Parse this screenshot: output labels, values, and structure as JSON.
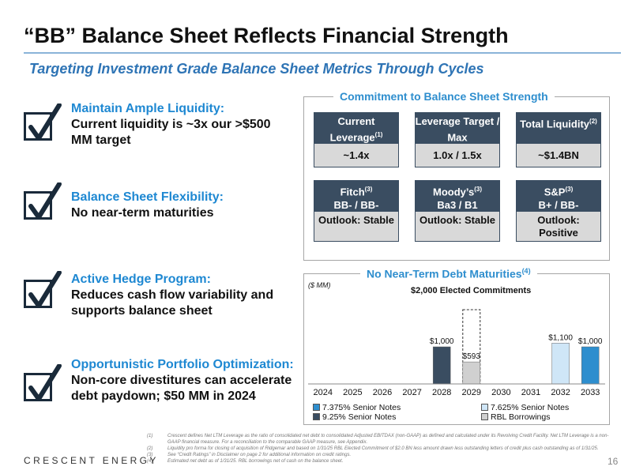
{
  "title": "“BB” Balance Sheet Reflects Financial Strength",
  "subtitle": "Targeting Investment Grade Balance Sheet Metrics Through Cycles",
  "bullets": [
    {
      "heading": "Maintain Ample Liquidity:",
      "body": "Current liquidity is ~3x our >$500 MM target",
      "icon": "checkbox-checked-icon"
    },
    {
      "heading": "Balance Sheet Flexibility:",
      "body": "No near-term maturities",
      "icon": "checkbox-checked-icon"
    },
    {
      "heading": "Active Hedge Program:",
      "body": "Reduces cash flow variability and supports balance sheet",
      "icon": "checkbox-checked-icon"
    },
    {
      "heading": "Opportunistic Portfolio Optimization:",
      "body": "Non-core divestitures can accelerate debt paydown; $50 MM in 2024",
      "icon": "checkbox-checked-icon"
    }
  ],
  "commitment": {
    "title": "Commitment to Balance Sheet Strength",
    "metrics": [
      {
        "label": "Current Leverage",
        "sup": "(1)",
        "value": "~1.4x"
      },
      {
        "label": "Leverage Target / Max",
        "sup": "",
        "value": "1.0x / 1.5x"
      },
      {
        "label": "Total Liquidity",
        "sup": "(2)",
        "value": "~$1.4BN"
      }
    ],
    "ratings": [
      {
        "agency": "Fitch",
        "sup": "(3)",
        "rating": "BB- / BB-",
        "outlook": "Outlook: Stable"
      },
      {
        "agency": "Moody’s",
        "sup": "(3)",
        "rating": "Ba3 / B1",
        "outlook": "Outlook: Stable"
      },
      {
        "agency": "S&P",
        "sup": "(3)",
        "rating": "B+ / BB-",
        "outlook": "Outlook: Positive"
      }
    ]
  },
  "maturities": {
    "title": "No Near-Term Debt Maturities",
    "title_sup": "(4)",
    "units": "($ MM)",
    "elected_label": "$2,000 Elected Commitments"
  },
  "chart_data": {
    "type": "bar",
    "title": "No Near-Term Debt Maturities",
    "ylabel": "($ MM)",
    "categories": [
      "2024",
      "2025",
      "2026",
      "2027",
      "2028",
      "2029",
      "2030",
      "2031",
      "2032",
      "2033"
    ],
    "ylim": [
      0,
      2000
    ],
    "series": [
      {
        "name": "7.375% Senior Notes",
        "color": "#2e8ece",
        "values": [
          0,
          0,
          0,
          0,
          0,
          0,
          0,
          0,
          0,
          1000
        ],
        "data_labels": [
          "",
          "",
          "",
          "",
          "",
          "",
          "",
          "",
          "",
          "$1,000"
        ]
      },
      {
        "name": "7.625% Senior Notes",
        "color": "#cfe6f7",
        "values": [
          0,
          0,
          0,
          0,
          0,
          0,
          0,
          0,
          1100,
          0
        ],
        "data_labels": [
          "",
          "",
          "",
          "",
          "",
          "",
          "",
          "",
          "$1,100",
          ""
        ]
      },
      {
        "name": "9.25% Senior Notes",
        "color": "#3a4d61",
        "values": [
          0,
          0,
          0,
          0,
          1000,
          0,
          0,
          0,
          0,
          0
        ],
        "data_labels": [
          "",
          "",
          "",
          "",
          "$1,000",
          "",
          "",
          "",
          "",
          ""
        ]
      },
      {
        "name": "RBL Borrowings",
        "color": "#d0d0d0",
        "values": [
          0,
          0,
          0,
          0,
          0,
          593,
          0,
          0,
          0,
          0
        ],
        "data_labels": [
          "",
          "",
          "",
          "",
          "",
          "$593",
          "",
          "",
          "",
          ""
        ]
      }
    ],
    "annotations": [
      {
        "category": "2029",
        "value": 2000,
        "text": "$2,000 Elected Commitments",
        "style": "dashed-outline"
      }
    ]
  },
  "footnotes": [
    {
      "num": "(1)",
      "text": "Crescent defines Net LTM Leverage as the ratio of consolidated net debt to consolidated Adjusted EBITDAX (non-GAAP) as defined and calculated under its Revolving Credit Facility. Net LTM Leverage is a non-GAAP financial measure. For a reconciliation to the comparable GAAP measure, see Appendix."
    },
    {
      "num": "(2)",
      "text": "Liquidity pro forma for closing of acquisition of Ridgemar and based on 1/31/25 RBL Elected Commitment of $2.0 BN less amount drawn less outstanding letters of credit plus cash outstanding as of 1/31/25."
    },
    {
      "num": "(3)",
      "text": "See “Credit Ratings” in Disclaimer on page 2 for additional information on credit ratings."
    },
    {
      "num": "(4)",
      "text": "Estimated net debt as of 1/31/25. RBL borrowings net of cash on the balance sheet."
    }
  ],
  "brand": "CRESCENT ENERGY",
  "page_number": "16"
}
